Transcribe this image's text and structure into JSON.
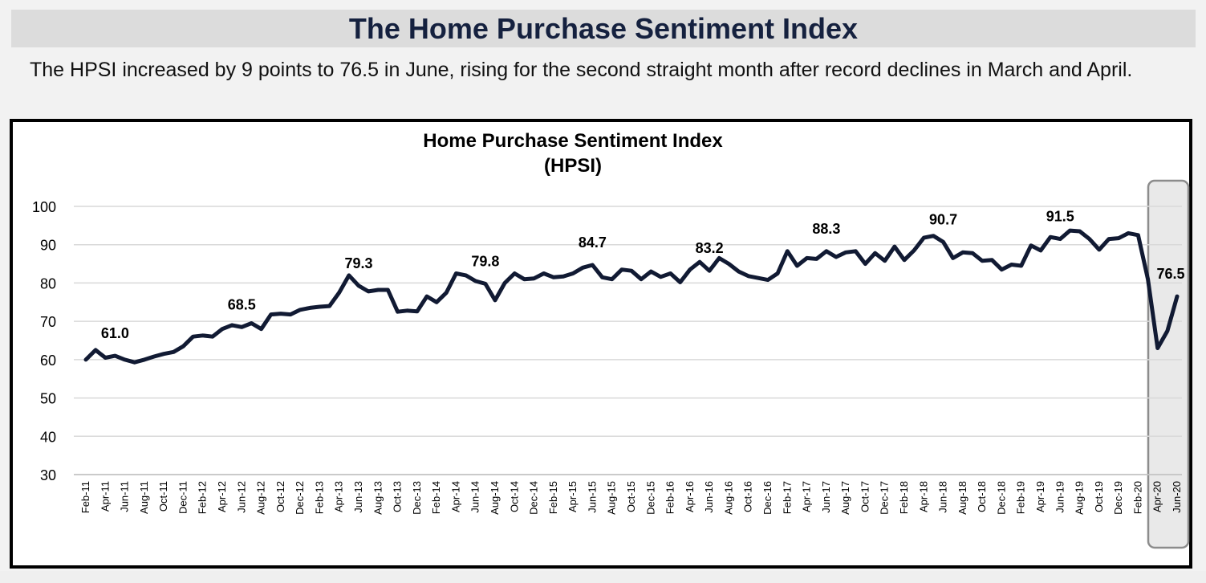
{
  "page": {
    "title": "The Home Purchase Sentiment Index",
    "summary": "The HPSI increased by 9 points to 76.5 in June, rising for the second straight month after record declines in March and April."
  },
  "chart_data": {
    "type": "line",
    "title": "Home Purchase Sentiment Index",
    "subtitle": "(HPSI)",
    "xlabel": "",
    "ylabel": "",
    "ylim": [
      30,
      100
    ],
    "yticks": [
      30,
      40,
      50,
      60,
      70,
      80,
      90,
      100
    ],
    "grid": true,
    "legend": "none",
    "colors": {
      "line": "#111a33",
      "grid": "#d9d9d9",
      "highlight_box": "#8c8c8c",
      "highlight_fill": "#e9e9e9"
    },
    "x_tick_labels": [
      "Feb-11",
      "Apr-11",
      "Jun-11",
      "Aug-11",
      "Oct-11",
      "Dec-11",
      "Feb-12",
      "Apr-12",
      "Jun-12",
      "Aug-12",
      "Oct-12",
      "Dec-12",
      "Feb-13",
      "Apr-13",
      "Jun-13",
      "Aug-13",
      "Oct-13",
      "Dec-13",
      "Feb-14",
      "Apr-14",
      "Jun-14",
      "Aug-14",
      "Oct-14",
      "Dec-14",
      "Feb-15",
      "Apr-15",
      "Jun-15",
      "Aug-15",
      "Oct-15",
      "Dec-15",
      "Feb-16",
      "Apr-16",
      "Jun-16",
      "Aug-16",
      "Oct-16",
      "Dec-16",
      "Feb-17",
      "Apr-17",
      "Jun-17",
      "Aug-17",
      "Oct-17",
      "Dec-17",
      "Feb-18",
      "Apr-18",
      "Jun-18",
      "Aug-18",
      "Oct-18",
      "Dec-18",
      "Feb-19",
      "Apr-19",
      "Jun-19",
      "Aug-19",
      "Oct-19",
      "Dec-19",
      "Feb-20",
      "Apr-20",
      "Jun-20"
    ],
    "series": [
      {
        "values": [
          60.0,
          62.5,
          60.5,
          61.0,
          60.0,
          59.3,
          60.0,
          60.8,
          61.5,
          62.0,
          63.5,
          66.0,
          66.3,
          66.0,
          68.0,
          69.0,
          68.5,
          69.5,
          68.0,
          71.8,
          72.0,
          71.8,
          73.0,
          73.5,
          73.8,
          74.0,
          77.5,
          82.0,
          79.3,
          77.8,
          78.2,
          78.2,
          72.5,
          72.8,
          72.6,
          76.5,
          75.0,
          77.5,
          82.5,
          82.0,
          80.5,
          79.8,
          75.5,
          80.0,
          82.5,
          81.0,
          81.2,
          82.5,
          81.5,
          81.7,
          82.5,
          84.0,
          84.7,
          81.5,
          81.0,
          83.5,
          83.2,
          81.0,
          83.0,
          81.6,
          82.5,
          80.2,
          83.5,
          85.5,
          83.2,
          86.5,
          85.0,
          83.0,
          81.8,
          81.3,
          80.8,
          82.5,
          88.3,
          84.5,
          86.5,
          86.3,
          88.3,
          86.8,
          88.0,
          88.3,
          85.0,
          87.8,
          85.8,
          89.5,
          86.0,
          88.5,
          91.8,
          92.3,
          90.7,
          86.5,
          88.0,
          87.8,
          85.8,
          86.0,
          83.5,
          84.8,
          84.5,
          89.8,
          88.5,
          92.0,
          91.5,
          93.7,
          93.5,
          91.5,
          88.7,
          91.5,
          91.7,
          93.0,
          92.5,
          81.0,
          63.0,
          67.5,
          76.5
        ]
      }
    ],
    "annotations": [
      {
        "label": "61.0",
        "index": 3
      },
      {
        "label": "68.5",
        "index": 16
      },
      {
        "label": "79.3",
        "index": 28
      },
      {
        "label": "79.8",
        "index": 41
      },
      {
        "label": "84.7",
        "index": 52
      },
      {
        "label": "83.2",
        "index": 64
      },
      {
        "label": "88.3",
        "index": 76
      },
      {
        "label": "90.7",
        "index": 88
      },
      {
        "label": "91.5",
        "index": 100
      },
      {
        "label": "76.5",
        "index": 112
      }
    ]
  }
}
